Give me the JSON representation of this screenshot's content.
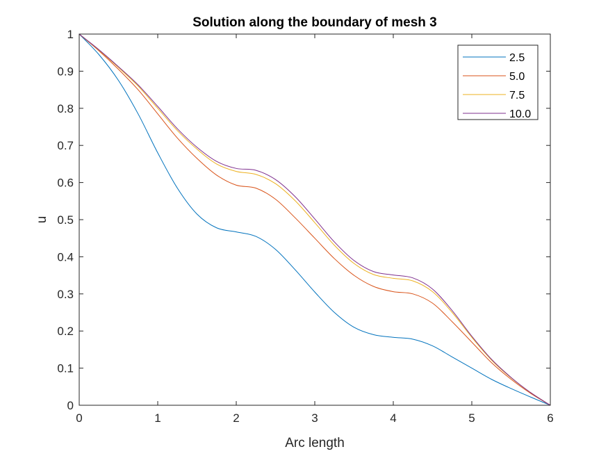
{
  "chart_data": {
    "type": "line",
    "title": "Solution along the boundary of mesh 3",
    "xlabel": "Arc length",
    "ylabel": "u",
    "xlim": [
      0,
      6
    ],
    "ylim": [
      0,
      1
    ],
    "xticks": [
      "0",
      "1",
      "2",
      "3",
      "4",
      "5",
      "6"
    ],
    "yticks": [
      "0",
      "0.1",
      "0.2",
      "0.3",
      "0.4",
      "0.5",
      "0.6",
      "0.7",
      "0.8",
      "0.9",
      "1"
    ],
    "grid": false,
    "legend_position": "top-right",
    "x": [
      0,
      0.25,
      0.5,
      0.75,
      1.0,
      1.25,
      1.5,
      1.75,
      2.0,
      2.25,
      2.5,
      2.75,
      3.0,
      3.25,
      3.5,
      3.75,
      4.0,
      4.25,
      4.5,
      4.75,
      5.0,
      5.25,
      5.5,
      5.75,
      6.0
    ],
    "series": [
      {
        "name": "2.5",
        "color": "#0072BD",
        "values": [
          1.0,
          0.945,
          0.875,
          0.785,
          0.68,
          0.585,
          0.515,
          0.478,
          0.467,
          0.455,
          0.42,
          0.365,
          0.305,
          0.25,
          0.21,
          0.19,
          0.183,
          0.178,
          0.16,
          0.13,
          0.1,
          0.07,
          0.045,
          0.022,
          0.0
        ]
      },
      {
        "name": "5.0",
        "color": "#D95319",
        "values": [
          1.0,
          0.955,
          0.905,
          0.85,
          0.785,
          0.72,
          0.665,
          0.62,
          0.593,
          0.585,
          0.555,
          0.505,
          0.45,
          0.395,
          0.35,
          0.32,
          0.306,
          0.3,
          0.275,
          0.225,
          0.17,
          0.115,
          0.07,
          0.032,
          0.0
        ]
      },
      {
        "name": "7.5",
        "color": "#EDB120",
        "values": [
          1.0,
          0.957,
          0.91,
          0.86,
          0.8,
          0.74,
          0.69,
          0.65,
          0.63,
          0.622,
          0.597,
          0.551,
          0.492,
          0.431,
          0.382,
          0.352,
          0.342,
          0.335,
          0.306,
          0.25,
          0.183,
          0.122,
          0.074,
          0.034,
          0.0
        ]
      },
      {
        "name": "10.0",
        "color": "#7E2F8E",
        "values": [
          1.0,
          0.958,
          0.912,
          0.863,
          0.805,
          0.745,
          0.695,
          0.657,
          0.638,
          0.633,
          0.608,
          0.562,
          0.502,
          0.44,
          0.39,
          0.36,
          0.351,
          0.343,
          0.313,
          0.255,
          0.186,
          0.124,
          0.075,
          0.034,
          0.0
        ]
      }
    ]
  }
}
